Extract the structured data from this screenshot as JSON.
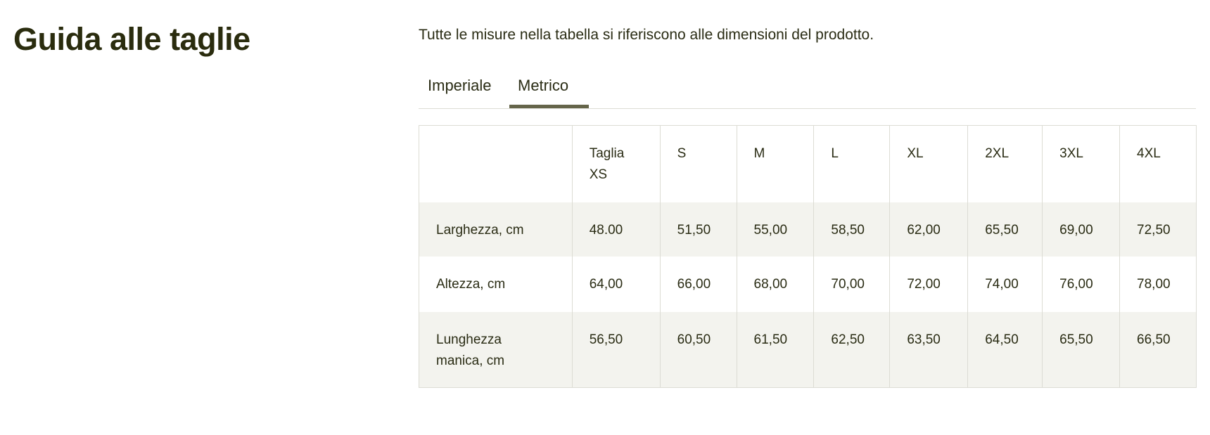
{
  "title": "Guida alle taglie",
  "intro": "Tutte le misure nella tabella si riferiscono alle dimensioni del prodotto.",
  "tabs": [
    {
      "label": "Imperiale",
      "active": false
    },
    {
      "label": "Metrico",
      "active": true
    }
  ],
  "accent_color": "#65654a",
  "table": {
    "headers": [
      "",
      "Taglia XS",
      "S",
      "M",
      "L",
      "XL",
      "2XL",
      "3XL",
      "4XL"
    ],
    "rows": [
      {
        "label": "Larghezza, cm",
        "values": [
          "48.00",
          "51,50",
          "55,00",
          "58,50",
          "62,00",
          "65,50",
          "69,00",
          "72,50"
        ]
      },
      {
        "label": "Altezza, cm",
        "values": [
          "64,00",
          "66,00",
          "68,00",
          "70,00",
          "72,00",
          "74,00",
          "76,00",
          "78,00"
        ]
      },
      {
        "label": "Lunghezza manica, cm",
        "values": [
          "56,50",
          "60,50",
          "61,50",
          "62,50",
          "63,50",
          "64,50",
          "65,50",
          "66,50"
        ]
      }
    ]
  }
}
